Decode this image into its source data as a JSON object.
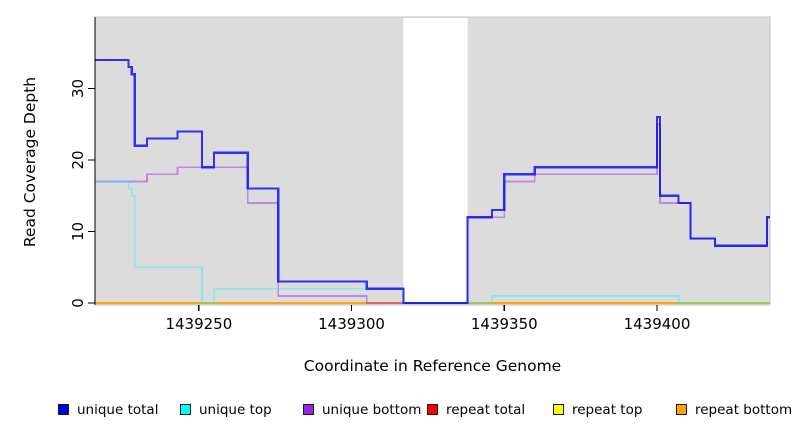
{
  "figure": {
    "title": "",
    "xlabel": "Coordinate in Reference Genome",
    "ylabel": "Read Coverage Depth"
  },
  "chart_data": {
    "type": "line",
    "subtype": "step-after",
    "title": "",
    "xlabel": "Coordinate in Reference Genome",
    "ylabel": "Read Coverage Depth",
    "xlim": [
      1439216,
      1439437
    ],
    "ylim": [
      0,
      40
    ],
    "x_ticks": [
      1439250,
      1439300,
      1439350,
      1439400
    ],
    "y_ticks": [
      0,
      10,
      20,
      30
    ],
    "grid": false,
    "plot_bg": "#DCDCDC",
    "gap_band": {
      "x_start": 1439317,
      "x_end": 1439338,
      "color": "#FFFFFF"
    },
    "legend_position": "bottom",
    "series": [
      {
        "name": "unique total",
        "color": "#0000FF",
        "legend_color": "#0000E6",
        "opacity": 0.78,
        "width": 2.2,
        "steps": [
          [
            1439216,
            34
          ],
          [
            1439227,
            33
          ],
          [
            1439228,
            32
          ],
          [
            1439229,
            22
          ],
          [
            1439233,
            23
          ],
          [
            1439243,
            24
          ],
          [
            1439251,
            19
          ],
          [
            1439255,
            21
          ],
          [
            1439266,
            16
          ],
          [
            1439276,
            3
          ],
          [
            1439305,
            2
          ],
          [
            1439317,
            0
          ],
          [
            1439338,
            12
          ],
          [
            1439346,
            13
          ],
          [
            1439350,
            18
          ],
          [
            1439360,
            19
          ],
          [
            1439400,
            26
          ],
          [
            1439401,
            15
          ],
          [
            1439407,
            14
          ],
          [
            1439411,
            9
          ],
          [
            1439419,
            8
          ],
          [
            1439436,
            12
          ]
        ]
      },
      {
        "name": "unique top",
        "color": "#00FFFF",
        "legend_color": "#00FFFF",
        "opacity": 0.38,
        "width": 1.7,
        "steps": [
          [
            1439216,
            17
          ],
          [
            1439227,
            16
          ],
          [
            1439228,
            15
          ],
          [
            1439229,
            5
          ],
          [
            1439251,
            0
          ],
          [
            1439255,
            2
          ],
          [
            1439317,
            0
          ],
          [
            1439346,
            1
          ],
          [
            1439407,
            0
          ]
        ]
      },
      {
        "name": "unique bottom",
        "color": "#A020F0",
        "legend_color": "#A020F0",
        "opacity": 0.45,
        "width": 1.7,
        "steps": [
          [
            1439216,
            17
          ],
          [
            1439233,
            18
          ],
          [
            1439243,
            19
          ],
          [
            1439266,
            14
          ],
          [
            1439276,
            1
          ],
          [
            1439305,
            0
          ],
          [
            1439338,
            12
          ],
          [
            1439350,
            17
          ],
          [
            1439360,
            18
          ],
          [
            1439400,
            25
          ],
          [
            1439401,
            14
          ],
          [
            1439411,
            9
          ],
          [
            1439419,
            8
          ],
          [
            1439436,
            12
          ]
        ]
      },
      {
        "name": "repeat total",
        "color": "#FF0000",
        "legend_color": "#FF0000",
        "opacity": 1,
        "width": 1.8,
        "steps": [
          [
            1439216,
            0
          ]
        ]
      },
      {
        "name": "repeat top",
        "color": "#FFFF00",
        "legend_color": "#FFFF00",
        "opacity": 1,
        "width": 1.8,
        "steps": [
          [
            1439216,
            0
          ]
        ]
      },
      {
        "name": "repeat bottom",
        "color": "#FFA500",
        "legend_color": "#FFA500",
        "opacity": 1,
        "width": 1.8,
        "steps": [
          [
            1439216,
            0
          ]
        ]
      }
    ]
  }
}
